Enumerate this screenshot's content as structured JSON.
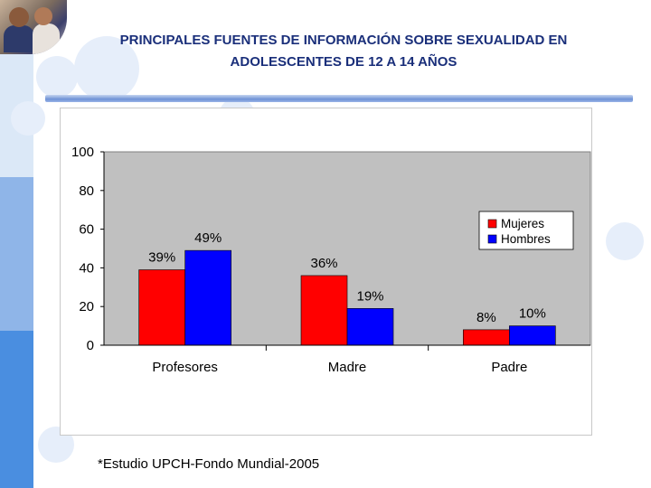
{
  "slide": {
    "title_line1": "PRINCIPALES FUENTES DE INFORMACIÓN SOBRE SEXUALIDAD EN",
    "title_line2": "ADOLESCENTES DE  12 A 14 AÑOS",
    "footnote": "*Estudio UPCH-Fondo Mundial-2005"
  },
  "chart_data": {
    "type": "bar",
    "title": "",
    "categories": [
      "Profesores",
      "Madre",
      "Padre"
    ],
    "series": [
      {
        "name": "Mujeres",
        "values": [
          39,
          36,
          8
        ],
        "labels": [
          "39%",
          "36%",
          "8%"
        ],
        "color": "#ff0000"
      },
      {
        "name": "Hombres",
        "values": [
          49,
          19,
          10
        ],
        "labels": [
          "49%",
          "19%",
          "10%"
        ],
        "color": "#0000ff"
      }
    ],
    "ylim": [
      0,
      100
    ],
    "yticks": [
      0,
      20,
      40,
      60,
      80,
      100
    ],
    "xlabel": "",
    "ylabel": "",
    "legend": "right",
    "plot_background": "#c0c0c0"
  }
}
